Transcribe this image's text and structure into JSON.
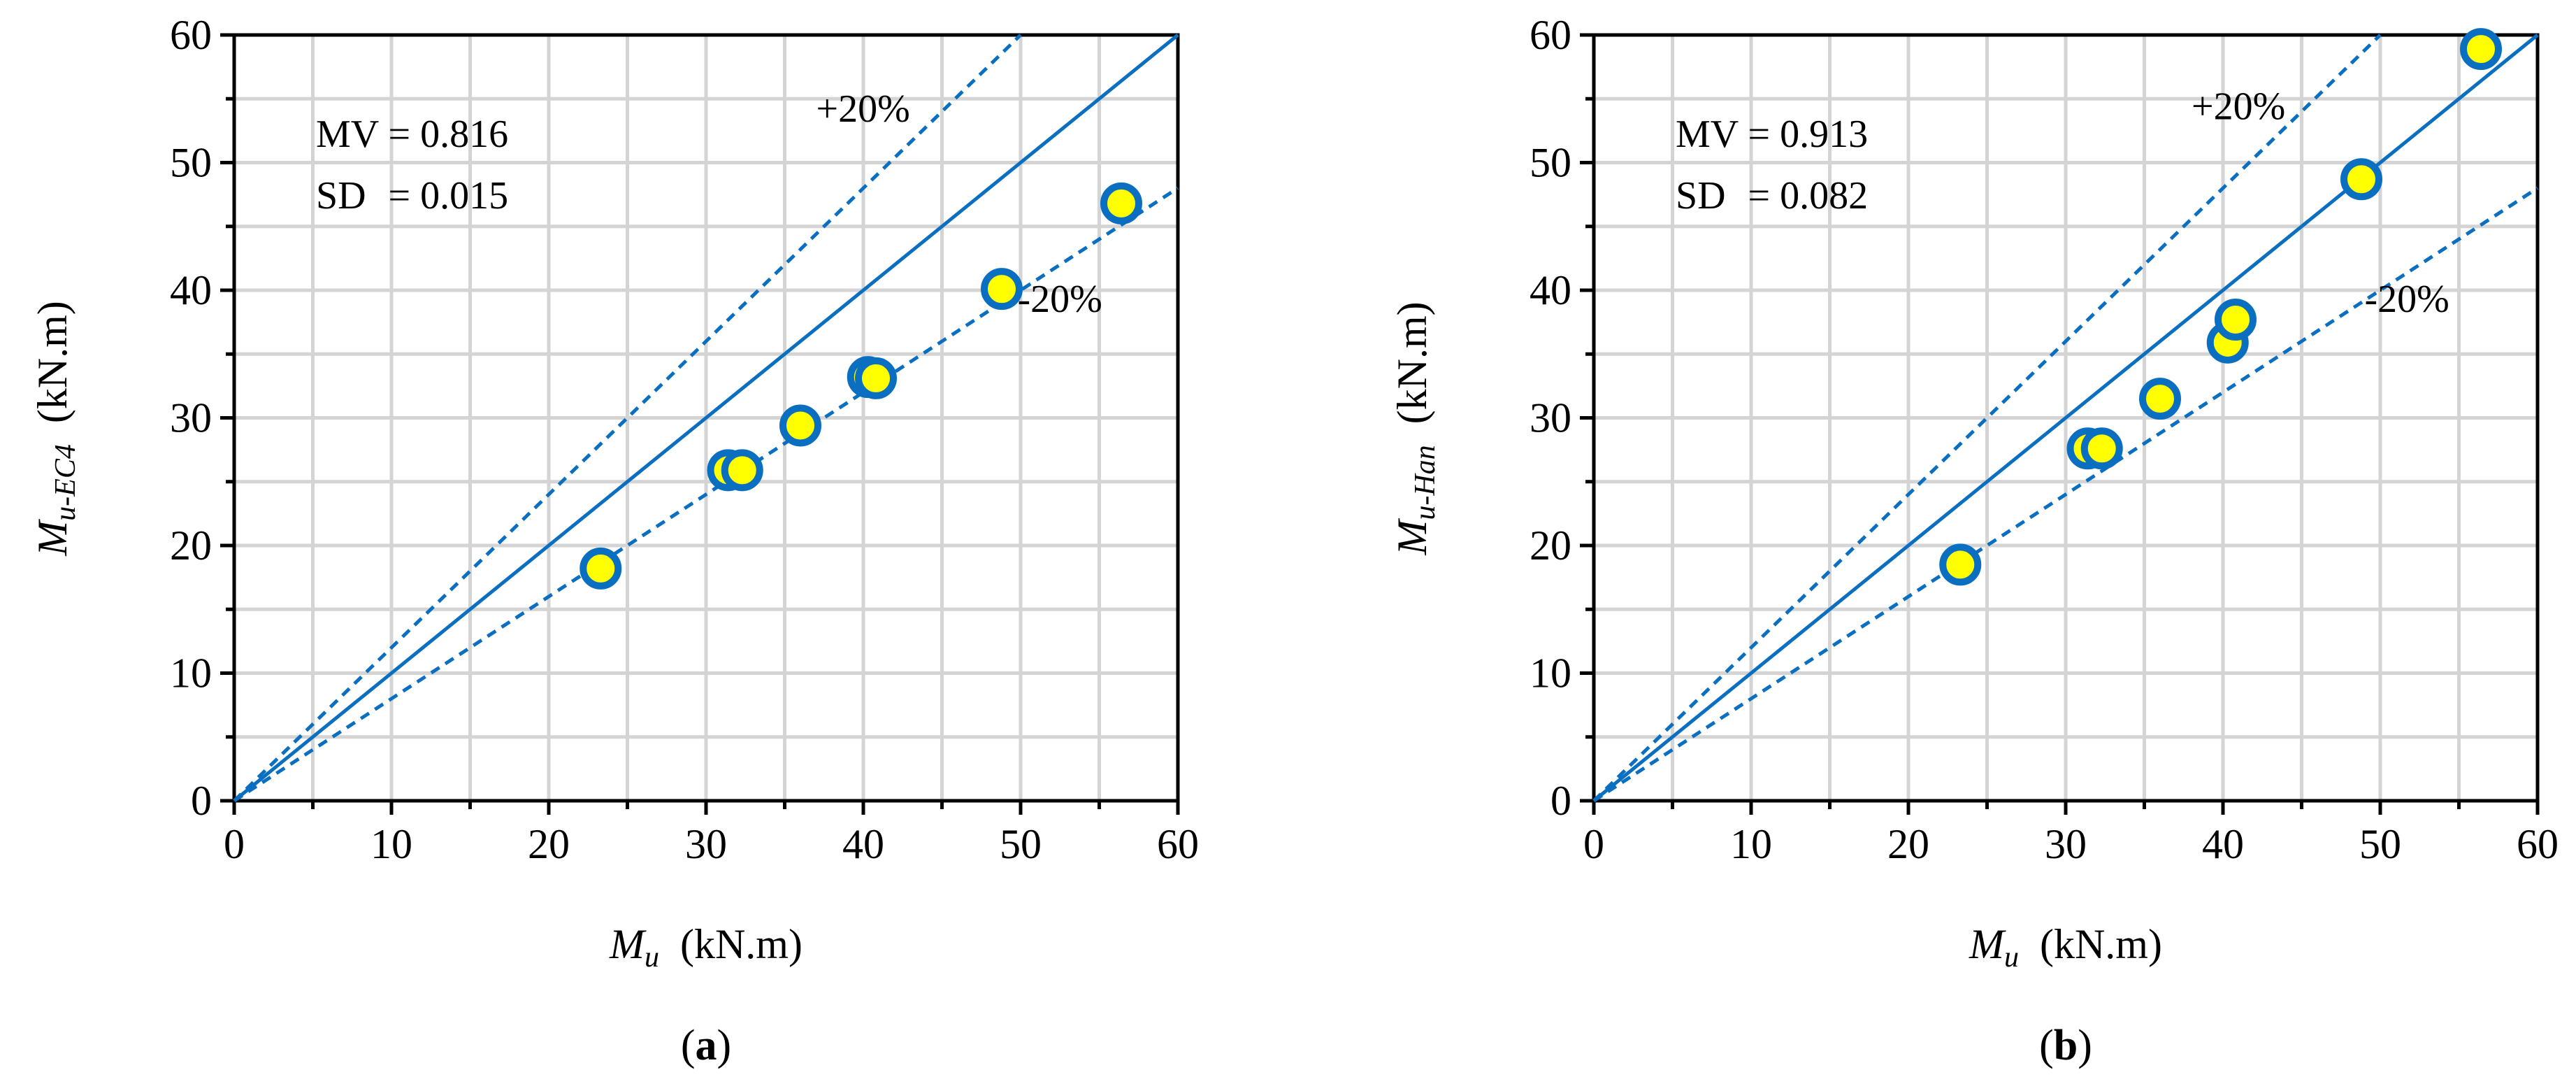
{
  "chart_data": [
    {
      "type": "scatter",
      "panel_label": "(a)",
      "title": "",
      "xlabel": {
        "symbol": "M",
        "subscript": "u",
        "unit": "(kN.m)"
      },
      "ylabel": {
        "symbol": "M",
        "subscript": "u-EC4",
        "unit": "(kN.m)"
      },
      "xlim": [
        0,
        60
      ],
      "ylim": [
        0,
        60
      ],
      "xticks": [
        "0",
        "10",
        "20",
        "30",
        "40",
        "50",
        "60"
      ],
      "yticks": [
        "0",
        "10",
        "20",
        "30",
        "40",
        "50",
        "60"
      ],
      "grid": true,
      "stats": [
        {
          "label": "MV",
          "value": "= 0.816"
        },
        {
          "label": "SD",
          "value": "= 0.015"
        }
      ],
      "reference_lines": [
        {
          "name": "1:1",
          "slope": 1.0,
          "style": "solid"
        },
        {
          "name": "+20%",
          "slope": 1.2,
          "style": "dashed",
          "label": "+20%"
        },
        {
          "name": "-20%",
          "slope": 0.8,
          "style": "dashed",
          "label": "-20%"
        }
      ],
      "points": [
        {
          "x": 23.3,
          "y": 18.2
        },
        {
          "x": 31.4,
          "y": 25.9
        },
        {
          "x": 32.3,
          "y": 25.9
        },
        {
          "x": 36.0,
          "y": 29.4
        },
        {
          "x": 40.3,
          "y": 33.2
        },
        {
          "x": 40.8,
          "y": 33.1
        },
        {
          "x": 48.8,
          "y": 40.1
        },
        {
          "x": 56.4,
          "y": 46.8
        }
      ]
    },
    {
      "type": "scatter",
      "panel_label": "(b)",
      "title": "",
      "xlabel": {
        "symbol": "M",
        "subscript": "u",
        "unit": "(kN.m)"
      },
      "ylabel": {
        "symbol": "M",
        "subscript": "u-Han",
        "unit": "(kN.m)"
      },
      "xlim": [
        0,
        60
      ],
      "ylim": [
        0,
        60
      ],
      "xticks": [
        "0",
        "10",
        "20",
        "30",
        "40",
        "50",
        "60"
      ],
      "yticks": [
        "0",
        "10",
        "20",
        "30",
        "40",
        "50",
        "60"
      ],
      "grid": true,
      "stats": [
        {
          "label": "MV",
          "value": "= 0.913"
        },
        {
          "label": "SD",
          "value": "= 0.082"
        }
      ],
      "reference_lines": [
        {
          "name": "1:1",
          "slope": 1.0,
          "style": "solid"
        },
        {
          "name": "+20%",
          "slope": 1.2,
          "style": "dashed",
          "label": "+20%"
        },
        {
          "name": "-20%",
          "slope": 0.8,
          "style": "dashed",
          "label": "-20%"
        }
      ],
      "points": [
        {
          "x": 23.3,
          "y": 18.5
        },
        {
          "x": 31.4,
          "y": 27.6
        },
        {
          "x": 32.3,
          "y": 27.6
        },
        {
          "x": 36.0,
          "y": 31.5
        },
        {
          "x": 40.3,
          "y": 35.9
        },
        {
          "x": 40.8,
          "y": 37.7
        },
        {
          "x": 48.8,
          "y": 48.7
        },
        {
          "x": 56.4,
          "y": 58.9
        }
      ]
    }
  ],
  "colors": {
    "line": "#0b6fc1",
    "marker_fill": "#ffff00",
    "marker_edge": "#0b6fc1",
    "grid": "#d4d4d4",
    "axis": "#000000"
  }
}
